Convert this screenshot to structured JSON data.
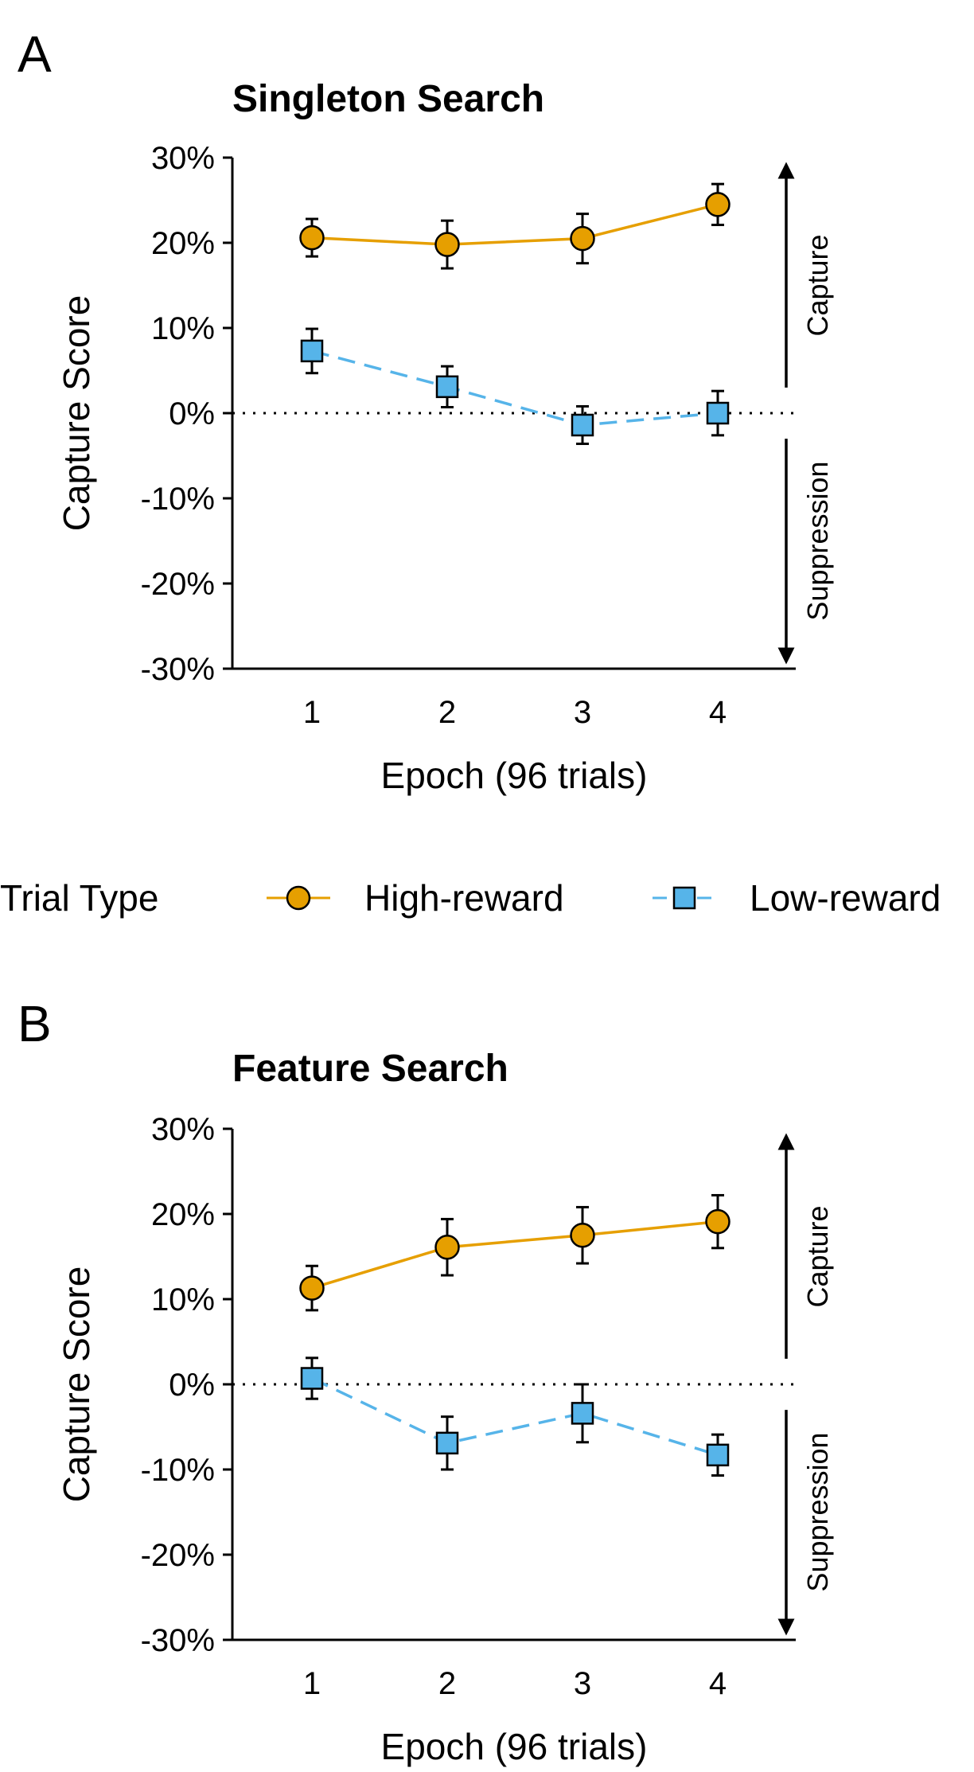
{
  "chart_data": [
    {
      "panel_label": "A",
      "type": "line",
      "title": "Singleton Search",
      "xlabel": "Epoch (96 trials)",
      "ylabel": "Capture Score",
      "categories": [
        "1",
        "2",
        "3",
        "4"
      ],
      "ylim": [
        -30,
        30
      ],
      "yticks": [
        30,
        20,
        10,
        0,
        -10,
        -20,
        -30
      ],
      "ytick_labels": [
        "30%",
        "20%",
        "10%",
        "0%",
        "-10%",
        "-20%",
        "-30%"
      ],
      "series": [
        {
          "name": "High-reward",
          "values": [
            20.6,
            19.8,
            20.5,
            24.5
          ],
          "errors": [
            2.2,
            2.8,
            2.9,
            2.4
          ]
        },
        {
          "name": "Low-reward",
          "values": [
            7.3,
            3.1,
            -1.4,
            0.0
          ],
          "errors": [
            2.6,
            2.4,
            2.2,
            2.6
          ]
        }
      ],
      "annotations": {
        "capture": "Capture",
        "suppression": "Suppression"
      }
    },
    {
      "panel_label": "B",
      "type": "line",
      "title": "Feature Search",
      "xlabel": "Epoch (96 trials)",
      "ylabel": "Capture Score",
      "categories": [
        "1",
        "2",
        "3",
        "4"
      ],
      "ylim": [
        -30,
        30
      ],
      "yticks": [
        30,
        20,
        10,
        0,
        -10,
        -20,
        -30
      ],
      "ytick_labels": [
        "30%",
        "20%",
        "10%",
        "0%",
        "-10%",
        "-20%",
        "-30%"
      ],
      "series": [
        {
          "name": "High-reward",
          "values": [
            11.3,
            16.1,
            17.5,
            19.1
          ],
          "errors": [
            2.6,
            3.3,
            3.3,
            3.1
          ]
        },
        {
          "name": "Low-reward",
          "values": [
            0.7,
            -6.9,
            -3.4,
            -8.3
          ],
          "errors": [
            2.4,
            3.1,
            3.4,
            2.4
          ]
        }
      ],
      "annotations": {
        "capture": "Capture",
        "suppression": "Suppression"
      }
    }
  ],
  "legend": {
    "title": "Trial Type",
    "items": [
      {
        "name": "High-reward",
        "marker": "circle",
        "color": "#E69F00",
        "line": "solid"
      },
      {
        "name": "Low-reward",
        "marker": "square",
        "color": "#56B4E9",
        "line": "dashed"
      }
    ]
  },
  "colors": {
    "high": "#E69F00",
    "low": "#56B4E9",
    "axis": "#000000"
  }
}
